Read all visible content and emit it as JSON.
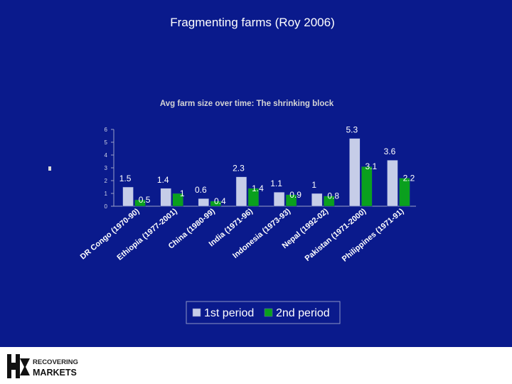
{
  "slide": {
    "title": "Fragmenting farms (Roy 2006)",
    "background_color": "#0a1a8c"
  },
  "chart_data": {
    "type": "bar",
    "title": "Avg farm size over time: The shrinking block",
    "xlabel": "",
    "ylabel": "",
    "categories": [
      "DR Congo (1970-90)",
      "Ethiopia (1977-2001)",
      "China (1980-99)",
      "India (1971-96)",
      "Indonesia (1973-93)",
      "Nepal (1992-02)",
      "Pakistan (1971-2000)",
      "Philippines (1971-91)"
    ],
    "series": [
      {
        "name": "1st period",
        "color": "#c6cde8",
        "values": [
          1.5,
          1.4,
          0.6,
          2.3,
          1.1,
          1,
          5.3,
          3.6
        ]
      },
      {
        "name": "2nd period",
        "color": "#0aa01e",
        "values": [
          0.5,
          1,
          0.4,
          1.4,
          0.9,
          0.8,
          3.1,
          2.2
        ]
      }
    ],
    "value_labels": [
      [
        "1.5",
        "1.4",
        "0.6",
        "2.3",
        "1.1",
        "1",
        "5.3",
        "3.6"
      ],
      [
        "0.5",
        "1",
        "0.4",
        "1.4",
        "0.9",
        "0.8",
        "3.1",
        "2.2"
      ]
    ],
    "ylim": [
      0,
      6
    ],
    "yticks": [
      "0",
      "1",
      "2",
      "3",
      "4",
      "5",
      "6"
    ],
    "grid": false,
    "legend_position": "bottom"
  },
  "logo": {
    "line1": "RECOVERING",
    "line2": "MARKETS",
    "icon": "rm-logo-icon"
  }
}
